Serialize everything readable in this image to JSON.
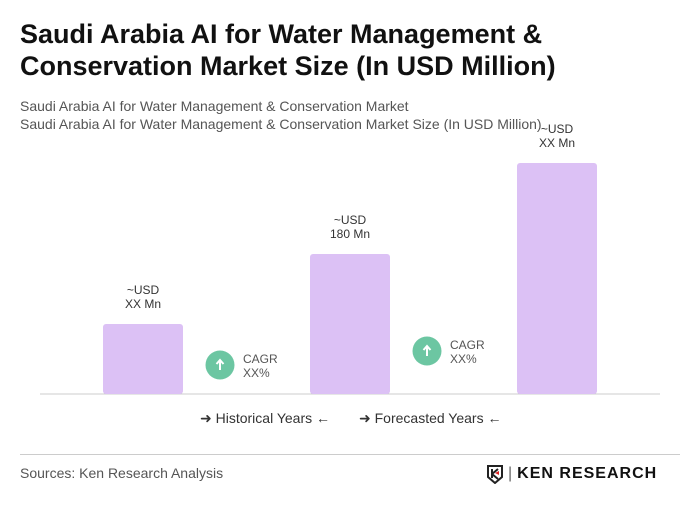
{
  "title": "Saudi Arabia AI for Water Management & Conservation Market Size (In USD Million)",
  "subtitle1": "Saudi Arabia AI for Water Management & Conservation Market",
  "subtitle2": "Saudi Arabia AI for Water Management & Conservation Market Size (In USD Million)",
  "chart_data": {
    "type": "bar",
    "values": [
      90,
      180,
      297
    ],
    "data_labels": [
      [
        "~USD",
        "XX Mn"
      ],
      [
        "~USD",
        "180 Mn"
      ],
      [
        "~USD",
        "XX Mn"
      ]
    ],
    "cagr": [
      [
        "CAGR",
        "XX%"
      ],
      [
        "CAGR",
        "XX%"
      ]
    ],
    "bar_color": "#dcc1f5",
    "cagr_color": "#6cc6a2",
    "grid": false
  },
  "legend": {
    "historical": "Historical Years",
    "forecasted": "Forecasted Years"
  },
  "source": "Sources: Ken Research Analysis",
  "logo": "KEN RESEARCH"
}
